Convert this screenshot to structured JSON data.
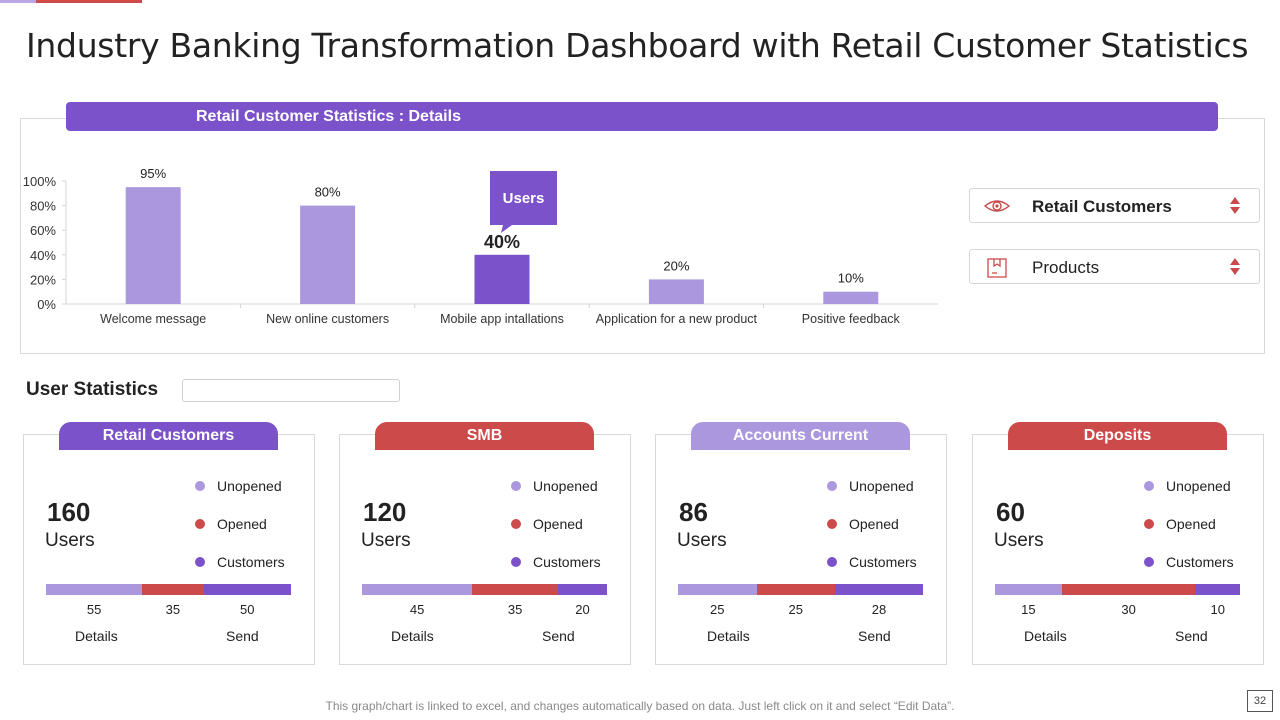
{
  "title": "Industry Banking Transformation Dashboard with Retail Customer Statistics",
  "panel": {
    "banner": "Retail Customer Statistics  : Details"
  },
  "chart_data": {
    "type": "bar",
    "title": "Retail Customer Statistics  : Details",
    "categories": [
      "Welcome message",
      "New online customers",
      "Mobile app intallations",
      "Application for a new product",
      "Positive feedback"
    ],
    "values": [
      95,
      80,
      40,
      20,
      10
    ],
    "value_labels": [
      "95%",
      "80%",
      "40%",
      "20%",
      "10%"
    ],
    "ylim": [
      0,
      100
    ],
    "yticks": [
      "0%",
      "20%",
      "40%",
      "60%",
      "80%",
      "100%"
    ],
    "highlight_index": 2,
    "callout": "Users",
    "colors": {
      "bar": "#ab97de",
      "highlight": "#7b52c9",
      "axis": "#d4d4d4"
    }
  },
  "filters": [
    {
      "label": "Retail Customers",
      "icon": "eye-icon"
    },
    {
      "label": "Products",
      "icon": "package-icon"
    }
  ],
  "user_stats": {
    "title": "User Statistics",
    "legend": [
      {
        "label": "Unopened",
        "color": "#ab97de"
      },
      {
        "label": "Opened",
        "color": "#cc4a4a"
      },
      {
        "label": "Customers",
        "color": "#7b52c9"
      }
    ],
    "details_label": "Details",
    "send_label": "Send",
    "unit": "Users",
    "cards": [
      {
        "title": "Retail Customers",
        "color": "#7b52c9",
        "count": "160",
        "segments": [
          55,
          35,
          50
        ]
      },
      {
        "title": "SMB",
        "color": "#cc4a4a",
        "count": "120",
        "segments": [
          45,
          35,
          20
        ]
      },
      {
        "title": "Accounts Current",
        "color": "#ab97de",
        "count": "86",
        "segments": [
          25,
          25,
          28
        ]
      },
      {
        "title": "Deposits",
        "color": "#cc4a4a",
        "count": "60",
        "segments": [
          15,
          30,
          10
        ]
      }
    ]
  },
  "footer": "This graph/chart is linked to excel, and changes automatically based on data. Just left click on it and select “Edit Data”.",
  "page_number": "32"
}
